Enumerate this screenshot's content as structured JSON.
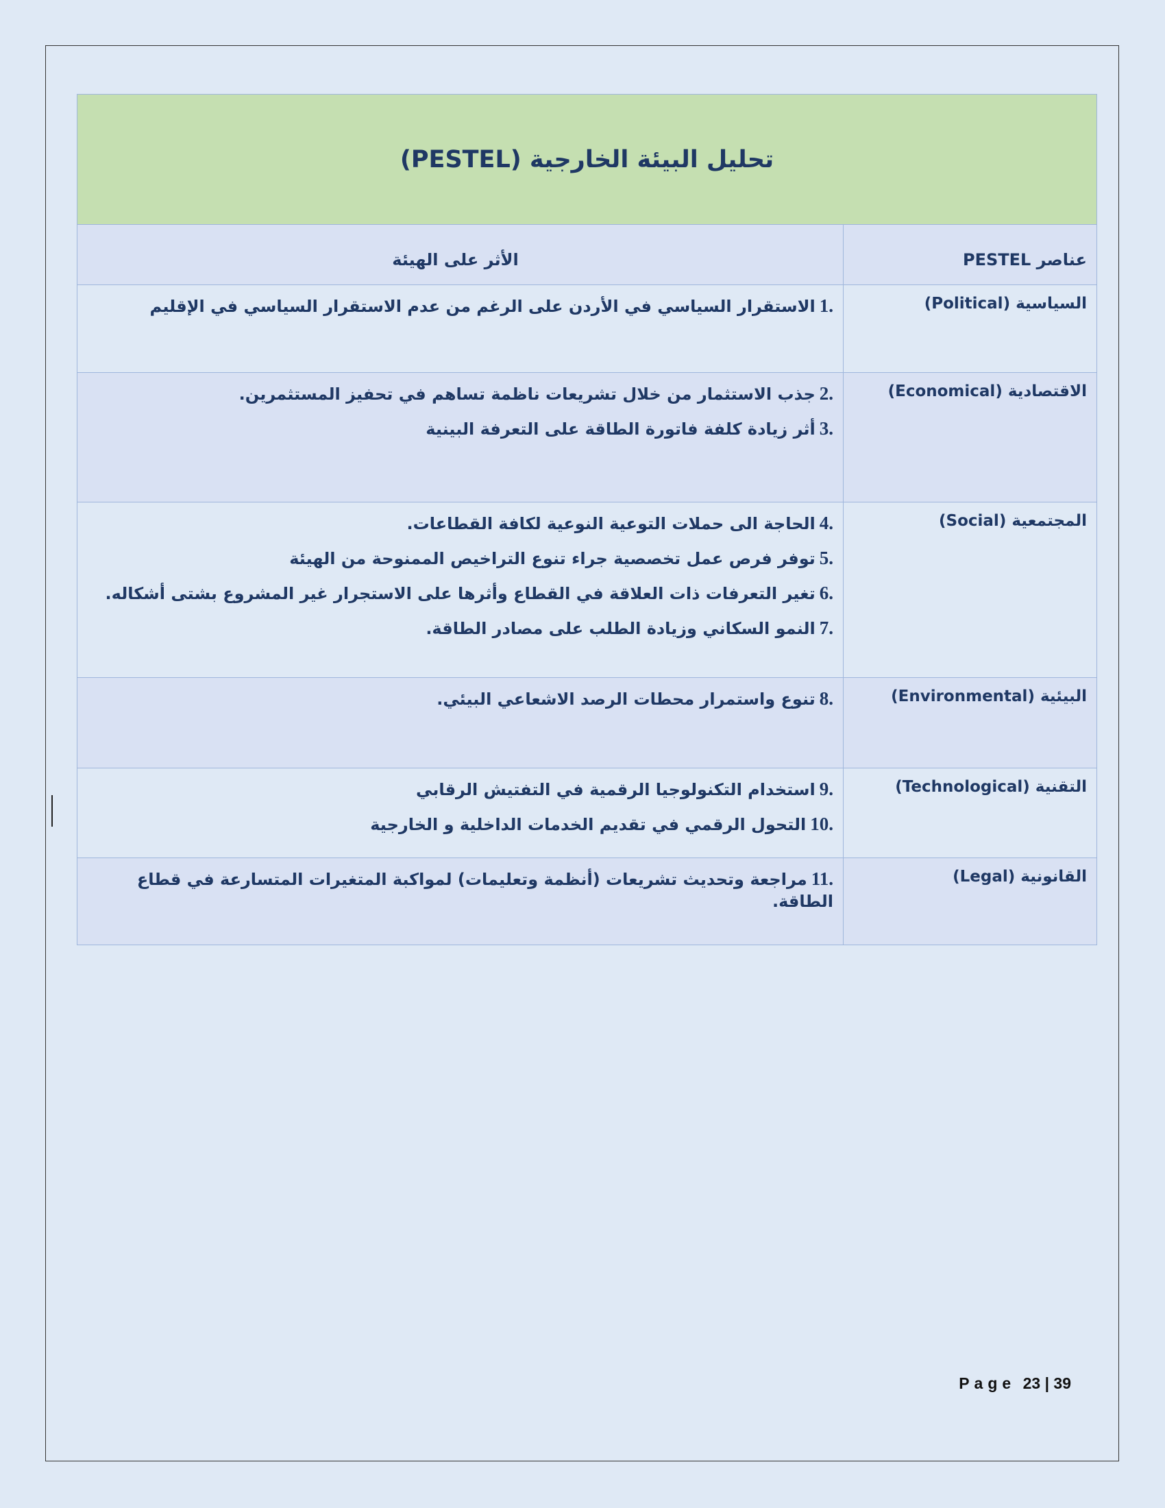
{
  "title": "تحليل البيئة الخارجية (PESTEL)",
  "headers": {
    "elements": "عناصر PESTEL",
    "impact": "الأثر على الهيئة"
  },
  "rows": [
    {
      "label": "السياسية (Political)",
      "items": [
        {
          "n": "1.",
          "t": "الاستقرار السياسي في الأردن على الرغم من عدم الاستقرار السياسي في الإقليم"
        }
      ]
    },
    {
      "label": "الاقتصادية (Economical)",
      "items": [
        {
          "n": "2.",
          "t": "جذب الاستثمار من خلال تشريعات ناظمة تساهم في تحفيز المستثمرين."
        },
        {
          "n": "3.",
          "t": "أثر زيادة كلفة فاتورة الطاقة على التعرفة البينية"
        }
      ]
    },
    {
      "label": "المجتمعية (Social)",
      "items": [
        {
          "n": "4.",
          "t": "الحاجة الى حملات التوعية النوعية لكافة القطاعات."
        },
        {
          "n": "5.",
          "t": "توفر فرص عمل تخصصية جراء تنوع التراخيص الممنوحة من الهيئة"
        },
        {
          "n": "6.",
          "t": "تغير التعرفات ذات العلاقة في القطاع وأثرها على الاستجرار غير المشروع بشتى أشكاله."
        },
        {
          "n": "7.",
          "t": "النمو السكاني وزيادة الطلب على مصادر الطاقة."
        }
      ]
    },
    {
      "label": "البيئية (Environmental)",
      "items": [
        {
          "n": "8.",
          "t": "تنوع واستمرار محطات الرصد الاشعاعي البيئي."
        }
      ]
    },
    {
      "label": "التقنية (Technological)",
      "items": [
        {
          "n": "9.",
          "t": "استخدام التكنولوجيا الرقمية في التفتيش الرقابي"
        },
        {
          "n": "10.",
          "t": "التحول الرقمي في تقديم الخدمات الداخلية و الخارجية"
        }
      ]
    },
    {
      "label": "القانونية (Legal)",
      "items": [
        {
          "n": "11.",
          "t": "مراجعة وتحديث تشريعات (أنظمة وتعليمات) لمواكبة المتغيرات المتسارعة في قطاع الطاقة."
        }
      ]
    }
  ],
  "footer": {
    "page_label": "Page",
    "current": "23",
    "separator": "|",
    "total": "39"
  }
}
